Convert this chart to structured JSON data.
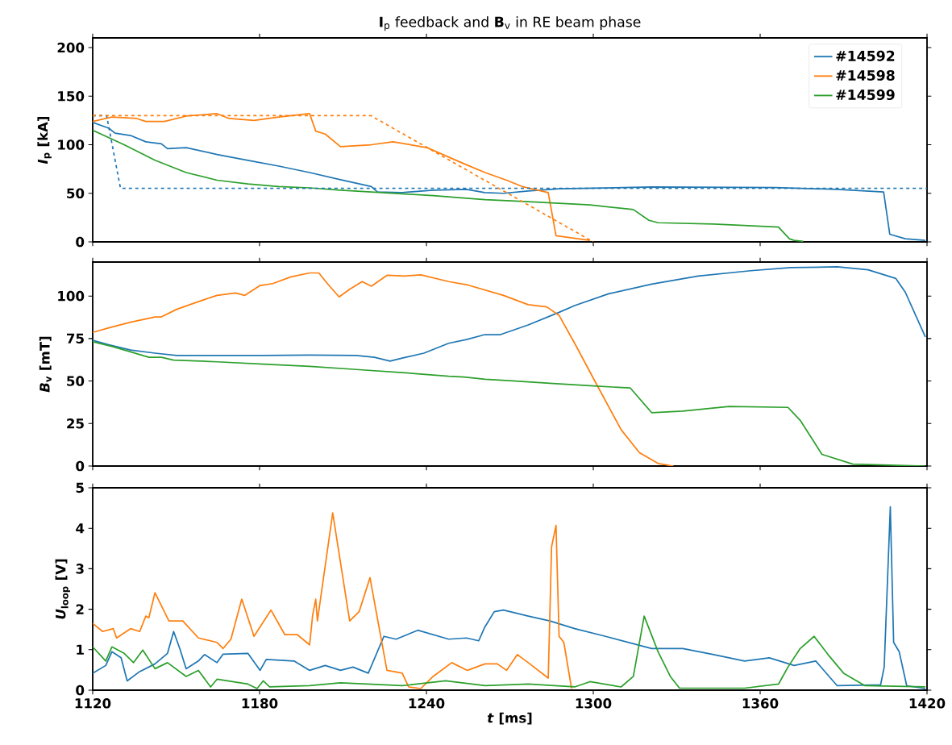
{
  "chart_data": [
    {
      "type": "line",
      "title": "**I**$_{p}$ feedback and **B**$_{v}$ in RE beam phase",
      "ylabel": "*I*$_{p}$ [kA]",
      "xlim": [
        1120,
        1420
      ],
      "xticks": [
        1120,
        1180,
        1240,
        1300,
        1360,
        1420
      ],
      "ylim": [
        0,
        210
      ],
      "yticks": [
        0,
        50,
        100,
        150,
        200
      ],
      "tick_labels": "y",
      "legend": "top right",
      "series": [
        {
          "name": "#14592",
          "color": "#1f77b4",
          "x": [
            1120,
            1125.8,
            1128,
            1133.6,
            1139.1,
            1144.7,
            1146.9,
            1153.6,
            1164.7,
            1175.8,
            1186.9,
            1198,
            1209.1,
            1220.2,
            1222.4,
            1231.3,
            1242.4,
            1254.4,
            1261,
            1267.7,
            1276.6,
            1287.7,
            1321,
            1365.5,
            1387.7,
            1404.4,
            1406.6,
            1412.2,
            1419.4
          ],
          "values": [
            123,
            117,
            112,
            109.5,
            103,
            101,
            96,
            97,
            90,
            84,
            78,
            71.4,
            64,
            57,
            51.4,
            50.8,
            53.3,
            54,
            50.8,
            50,
            52.4,
            54.6,
            56.5,
            56,
            54,
            51.4,
            7.9,
            3.2,
            1.6
          ]
        },
        {
          "name": "#14598",
          "color": "#ff7f0e",
          "x": [
            1120,
            1126.9,
            1135.8,
            1139.1,
            1145.8,
            1153.6,
            1164.7,
            1169.1,
            1178,
            1186.9,
            1198,
            1200.2,
            1203.6,
            1209.1,
            1220.2,
            1228,
            1240.2,
            1254.4,
            1261.1,
            1268.8,
            1274.4,
            1283.8,
            1286.6,
            1298.8
          ],
          "values": [
            124,
            128.6,
            127,
            124,
            124,
            129.5,
            132,
            127,
            125,
            128.6,
            132,
            114,
            111,
            98,
            100,
            103,
            97,
            79.4,
            71.4,
            63.5,
            57,
            50.8,
            6.3,
            1.6
          ]
        },
        {
          "name": "#14599",
          "color": "#2ca02c",
          "x": [
            1120,
            1131.3,
            1142.4,
            1153.6,
            1164.7,
            1175.8,
            1186.9,
            1198,
            1209.1,
            1220.2,
            1231.3,
            1242.4,
            1254.4,
            1261.1,
            1276.6,
            1298.8,
            1314.4,
            1320,
            1323.3,
            1343.3,
            1366.6,
            1370.5,
            1372.2,
            1375.5
          ],
          "values": [
            115,
            100,
            84,
            71.4,
            63.5,
            59.7,
            57,
            55.6,
            53.3,
            51.4,
            49.5,
            47.6,
            45,
            43.5,
            41.3,
            38,
            33.3,
            22.2,
            19.7,
            18.4,
            15.2,
            3.2,
            1.6,
            0.6
          ]
        },
        {
          "color": "#1f77b4",
          "line_style": "dashed",
          "x": [
            1120,
            1125,
            1130,
            1420
          ],
          "values": [
            130,
            130,
            55,
            55
          ]
        },
        {
          "color": "#ff7f0e",
          "line_style": "dashed",
          "x": [
            1120,
            1220,
            1300
          ],
          "values": [
            130,
            130,
            0
          ]
        }
      ]
    },
    {
      "type": "line",
      "ylabel": "*B*$_{v}$ [mT]",
      "xlim": [
        1120,
        1420
      ],
      "xticks": [
        1120,
        1180,
        1240,
        1300,
        1360,
        1420
      ],
      "ylim": [
        0,
        120
      ],
      "yticks": [
        0,
        25,
        50,
        75,
        100
      ],
      "tick_labels": "y",
      "series": [
        {
          "color": "#1f77b4",
          "x": [
            1120,
            1125.8,
            1133.6,
            1142.4,
            1150.2,
            1164.7,
            1181.3,
            1198,
            1214.7,
            1221.3,
            1226.9,
            1231.3,
            1239.1,
            1248,
            1254.4,
            1261,
            1266.6,
            1276.6,
            1287.7,
            1293.3,
            1305.5,
            1321,
            1337.7,
            1356.6,
            1371,
            1387.7,
            1398.8,
            1408.8,
            1412.2,
            1419.4
          ],
          "values": [
            74,
            71.3,
            68.2,
            66.4,
            65,
            65,
            65,
            65.3,
            65,
            64,
            61.7,
            63.5,
            66.4,
            72.2,
            74.4,
            77.3,
            77.3,
            83,
            90.4,
            94.4,
            101.3,
            107,
            111.8,
            114.9,
            116.7,
            117.2,
            115.4,
            110.3,
            102.2,
            75.9
          ]
        },
        {
          "color": "#ff7f0e",
          "x": [
            1120,
            1125.8,
            1133.6,
            1142.4,
            1144.7,
            1150.2,
            1158,
            1164.7,
            1171.3,
            1174.7,
            1180.2,
            1184.7,
            1191.3,
            1198,
            1201.3,
            1204.7,
            1208.6,
            1212.4,
            1216.9,
            1220.2,
            1225.8,
            1232.4,
            1238,
            1248,
            1254.4,
            1267.7,
            1276.6,
            1283.3,
            1287.7,
            1293.3,
            1301,
            1310,
            1316.6,
            1323.3,
            1328.8
          ],
          "values": [
            78.6,
            81.3,
            84.6,
            87.7,
            87.7,
            92.2,
            96.7,
            100.4,
            101.8,
            100.4,
            106.2,
            107.3,
            111.3,
            113.6,
            113.6,
            106.7,
            99.5,
            104,
            108.5,
            105.8,
            112.2,
            111.8,
            112.5,
            108.5,
            106.7,
            100.4,
            94.9,
            93.6,
            88.6,
            72.2,
            48.6,
            21.4,
            7.8,
            1.5,
            0
          ]
        },
        {
          "color": "#2ca02c",
          "x": [
            1120,
            1126.9,
            1133.6,
            1140.2,
            1144.7,
            1149.1,
            1164.7,
            1181.3,
            1198,
            1214.7,
            1231.3,
            1248,
            1253.6,
            1261.1,
            1271,
            1285.5,
            1298.8,
            1313.3,
            1321,
            1332.2,
            1348.8,
            1370,
            1374.4,
            1382.2,
            1393.3,
            1419.4
          ],
          "values": [
            73.1,
            70.4,
            67.2,
            64,
            64,
            62.3,
            61.3,
            59.9,
            58.6,
            56.8,
            55,
            52.8,
            52.3,
            51,
            50.1,
            48.6,
            47.2,
            45.9,
            31.4,
            32.3,
            35,
            34.5,
            26.9,
            6.9,
            1.1,
            0
          ]
        }
      ]
    },
    {
      "type": "line",
      "xlabel": "*t* [ms]",
      "ylabel": "*U*$_{loop}$ [V]",
      "xlim": [
        1120,
        1420
      ],
      "xticks": [
        1120,
        1180,
        1240,
        1300,
        1360,
        1420
      ],
      "ylim": [
        0,
        5
      ],
      "yticks": [
        0,
        1,
        2,
        3,
        4,
        5
      ],
      "series": [
        {
          "color": "#1f77b4",
          "x": [
            1120,
            1124.7,
            1126.9,
            1130.2,
            1132.4,
            1136.9,
            1142.4,
            1146.9,
            1149.1,
            1151.3,
            1153.6,
            1158,
            1160.2,
            1164.7,
            1166.9,
            1175.8,
            1180.2,
            1182.4,
            1192.4,
            1198,
            1203.6,
            1209.1,
            1213.6,
            1219.1,
            1224.7,
            1229.1,
            1236.9,
            1248,
            1254.4,
            1258.8,
            1261,
            1264.4,
            1267.7,
            1276.6,
            1284.4,
            1293.3,
            1304.4,
            1321,
            1332.2,
            1343.3,
            1354.4,
            1363.3,
            1372.2,
            1380,
            1387.7,
            1403.3,
            1404.6,
            1406.8,
            1408,
            1410,
            1412.7,
            1419.4
          ],
          "values": [
            0.42,
            0.61,
            0.95,
            0.8,
            0.23,
            0.46,
            0.65,
            0.91,
            1.45,
            1.03,
            0.53,
            0.72,
            0.88,
            0.68,
            0.89,
            0.91,
            0.49,
            0.76,
            0.72,
            0.49,
            0.61,
            0.49,
            0.57,
            0.42,
            1.33,
            1.26,
            1.48,
            1.26,
            1.29,
            1.22,
            1.56,
            1.94,
            1.98,
            1.83,
            1.71,
            1.52,
            1.33,
            1.03,
            1.03,
            0.88,
            0.72,
            0.8,
            0.61,
            0.72,
            0.11,
            0.13,
            0.57,
            4.53,
            1.18,
            0.95,
            0.11,
            0.04
          ]
        },
        {
          "color": "#ff7f0e",
          "x": [
            1120,
            1123.6,
            1127.4,
            1128.6,
            1133.6,
            1136.9,
            1139.1,
            1140.2,
            1142.4,
            1147.4,
            1152.4,
            1158,
            1164.7,
            1166.9,
            1169.7,
            1173.6,
            1178,
            1184.1,
            1189.1,
            1193.6,
            1198,
            1199.1,
            1200.2,
            1200.8,
            1206.3,
            1212.4,
            1215.8,
            1219.7,
            1225.8,
            1231.3,
            1233.6,
            1238,
            1242.4,
            1249.1,
            1254.7,
            1261.1,
            1265.5,
            1268.8,
            1272.7,
            1276.6,
            1283.8,
            1285,
            1286.6,
            1287.7,
            1289.4,
            1292.2
          ],
          "values": [
            1.65,
            1.45,
            1.52,
            1.29,
            1.52,
            1.45,
            1.83,
            1.79,
            2.41,
            1.71,
            1.71,
            1.29,
            1.18,
            1.03,
            1.26,
            2.25,
            1.33,
            1.98,
            1.37,
            1.37,
            1.12,
            1.86,
            2.25,
            1.71,
            4.38,
            1.71,
            1.94,
            2.78,
            0.49,
            0.42,
            0.08,
            0.04,
            0.34,
            0.68,
            0.49,
            0.65,
            0.65,
            0.49,
            0.88,
            0.68,
            0.3,
            3.54,
            4.07,
            1.33,
            1.18,
            0.04
          ]
        },
        {
          "color": "#2ca02c",
          "x": [
            1120,
            1124.7,
            1126.9,
            1131.3,
            1134.7,
            1138,
            1142.4,
            1146.9,
            1153.6,
            1158,
            1162.4,
            1164.7,
            1175.8,
            1179.1,
            1181.3,
            1183.6,
            1198,
            1209.1,
            1231.3,
            1246.9,
            1261.1,
            1276.6,
            1293.3,
            1298.8,
            1310,
            1314.4,
            1318.3,
            1323.3,
            1327.7,
            1331,
            1354.4,
            1366.6,
            1370,
            1374.4,
            1379.4,
            1384.4,
            1390,
            1397.7,
            1419.4
          ],
          "values": [
            1.07,
            0.72,
            1.07,
            0.91,
            0.68,
            0.99,
            0.53,
            0.68,
            0.34,
            0.49,
            0.08,
            0.27,
            0.15,
            0.04,
            0.23,
            0.08,
            0.11,
            0.18,
            0.11,
            0.23,
            0.11,
            0.15,
            0.08,
            0.21,
            0.08,
            0.34,
            1.83,
            0.95,
            0.34,
            0.05,
            0.05,
            0.15,
            0.57,
            1.03,
            1.33,
            0.88,
            0.42,
            0.11,
            0.08
          ]
        }
      ]
    }
  ]
}
